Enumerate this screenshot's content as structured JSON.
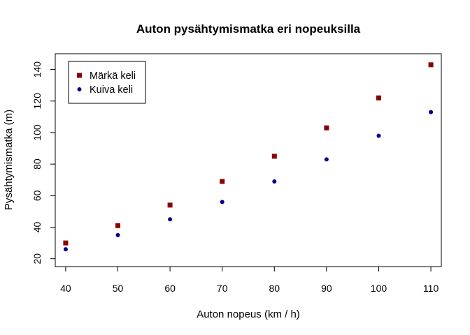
{
  "chart_data": {
    "type": "scatter",
    "title": "Auton pysähtymismatka eri nopeuksilla",
    "xlabel": "Auton nopeus (km / h)",
    "ylabel": "Pysähtymismatka (m)",
    "xlim": [
      38,
      112
    ],
    "ylim": [
      15,
      150
    ],
    "xticks": [
      40,
      50,
      60,
      70,
      80,
      90,
      100,
      110
    ],
    "yticks": [
      20,
      40,
      60,
      80,
      100,
      120,
      140
    ],
    "legend_position": "top-left",
    "series": [
      {
        "name": "Märkä keli",
        "color": "#8B0000",
        "marker": "square",
        "x": [
          40,
          50,
          60,
          70,
          80,
          90,
          100,
          110
        ],
        "y": [
          30,
          41,
          54,
          69,
          85,
          103,
          122,
          143
        ]
      },
      {
        "name": "Kuiva keli",
        "color": "#00008B",
        "marker": "circle",
        "x": [
          40,
          50,
          60,
          70,
          80,
          90,
          100,
          110
        ],
        "y": [
          26,
          35,
          45,
          56,
          69,
          83,
          98,
          113
        ]
      }
    ]
  }
}
